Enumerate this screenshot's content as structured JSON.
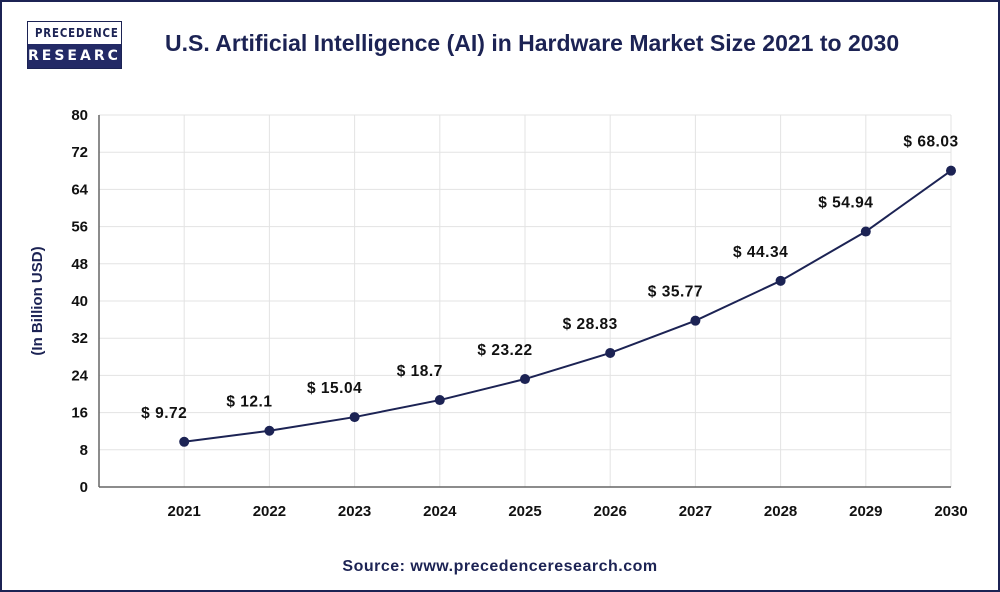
{
  "logo": {
    "line1": "PRECEDENCE",
    "line2": "RESEARCH"
  },
  "source": "Source: www.precedenceresearch.com",
  "colors": {
    "line": "#1c2354",
    "grid": "#e3e3e3",
    "axis": "#666666"
  },
  "chart_data": {
    "type": "line",
    "title": "U.S. Artificial Intelligence (AI) in Hardware Market Size 2021 to 2030",
    "xlabel": "",
    "ylabel": "(In Billion USD)",
    "categories": [
      "2021",
      "2022",
      "2023",
      "2024",
      "2025",
      "2026",
      "2027",
      "2028",
      "2029",
      "2030"
    ],
    "values": [
      9.72,
      12.1,
      15.04,
      18.7,
      23.22,
      28.83,
      35.77,
      44.34,
      54.94,
      68.03
    ],
    "data_labels": [
      "$ 9.72",
      "$ 12.1",
      "$ 15.04",
      "$ 18.7",
      "$ 23.22",
      "$ 28.83",
      "$ 35.77",
      "$ 44.34",
      "$ 54.94",
      "$ 68.03"
    ],
    "ylim": [
      0,
      80
    ],
    "yticks": [
      "0",
      "8",
      "16",
      "24",
      "32",
      "40",
      "48",
      "56",
      "64",
      "72",
      "80"
    ],
    "grid": true,
    "legend": "none"
  }
}
